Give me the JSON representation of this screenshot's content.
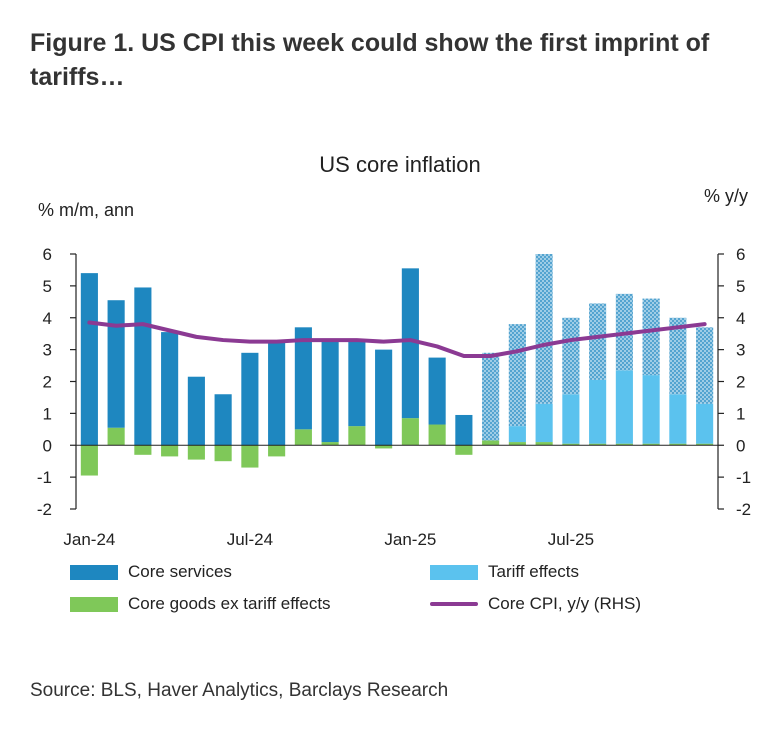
{
  "figure": {
    "title": "Figure 1. US CPI this week could show the first imprint of tariffs…",
    "source": "Source: BLS, Haver Analytics, Barclays Research"
  },
  "chart_data": {
    "type": "bar",
    "title": "US core inflation",
    "ylabel_left": "% m/m, ann",
    "ylabel_right": "% y/y",
    "ylim_left": [
      -2,
      6
    ],
    "ylim_right": [
      -2,
      6
    ],
    "yticks_left": [
      "6",
      "5",
      "4",
      "3",
      "2",
      "1",
      "0",
      "-1",
      "-2"
    ],
    "yticks_right": [
      "6",
      "5",
      "4",
      "3",
      "2",
      "1",
      "0",
      "-1",
      "-2"
    ],
    "x_tick_labels": [
      "Jan-24",
      "Jul-24",
      "Jan-25",
      "Jul-25"
    ],
    "x_tick_index": [
      0,
      6,
      12,
      18
    ],
    "categories": [
      "Jan-24",
      "Feb-24",
      "Mar-24",
      "Apr-24",
      "May-24",
      "Jun-24",
      "Jul-24",
      "Aug-24",
      "Sep-24",
      "Oct-24",
      "Nov-24",
      "Dec-24",
      "Jan-25",
      "Feb-25",
      "Mar-25",
      "Apr-25",
      "May-25",
      "Jun-25",
      "Jul-25",
      "Aug-25",
      "Sep-25",
      "Oct-25",
      "Nov-25",
      "Dec-25"
    ],
    "forecast_start_index": 15,
    "series": [
      {
        "name": "Core services",
        "color": "#1e87c0",
        "axis": "left",
        "kind": "bar",
        "values": [
          5.4,
          4.0,
          4.95,
          3.55,
          2.15,
          1.6,
          2.9,
          3.3,
          3.2,
          3.25,
          2.7,
          3.0,
          4.7,
          2.1,
          0.95,
          2.75,
          3.2,
          4.7,
          2.4,
          2.4,
          2.4,
          2.4,
          2.4,
          2.4
        ]
      },
      {
        "name": "Core goods ex tariff effects",
        "color": "#7fc859",
        "axis": "left",
        "kind": "bar",
        "values": [
          -0.95,
          0.55,
          -0.3,
          -0.35,
          -0.45,
          -0.5,
          -0.7,
          -0.35,
          0.5,
          0.1,
          0.6,
          -0.1,
          0.85,
          0.65,
          -0.3,
          0.15,
          0.1,
          0.1,
          0.05,
          0.05,
          0.05,
          0.05,
          0.05,
          0.05
        ]
      },
      {
        "name": "Tariff effects",
        "color": "#5bc2ee",
        "axis": "left",
        "kind": "bar",
        "values": [
          0,
          0,
          0,
          0,
          0,
          0,
          0,
          0,
          0,
          0,
          0,
          0,
          0,
          0,
          0,
          0,
          0.5,
          1.2,
          1.55,
          2.0,
          2.3,
          2.15,
          1.55,
          1.25
        ]
      },
      {
        "name": "Core CPI, y/y (RHS)",
        "color": "#8b3a93",
        "axis": "right",
        "kind": "line",
        "values": [
          3.85,
          3.75,
          3.8,
          3.6,
          3.4,
          3.3,
          3.25,
          3.25,
          3.3,
          3.3,
          3.3,
          3.25,
          3.3,
          3.1,
          2.8,
          2.8,
          2.95,
          3.15,
          3.3,
          3.4,
          3.5,
          3.6,
          3.7,
          3.8
        ]
      }
    ],
    "legend": [
      "Core services",
      "Tariff effects",
      "Core goods ex tariff effects",
      "Core CPI, y/y (RHS)"
    ],
    "legend_position": "bottom"
  }
}
